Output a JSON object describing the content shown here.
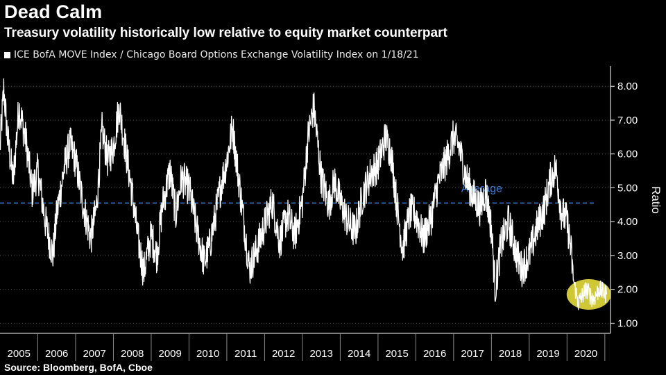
{
  "header": {
    "title": "Dead Calm",
    "subtitle": "Treasury volatility historically low relative to equity market counterpart",
    "legend_label": "ICE BofA MOVE Index / Chicago Board Options Exchange Volatility Index on 1/18/21"
  },
  "footer": {
    "source": "Source: Bloomberg, BofA, Cboe"
  },
  "chart_data": {
    "type": "line",
    "ylabel": "Ratio",
    "ylim": [
      0.7,
      8.6
    ],
    "yticks": [
      "8.00",
      "7.00",
      "6.00",
      "5.00",
      "4.00",
      "3.00",
      "2.00",
      "1.00"
    ],
    "x_categories": [
      "2005",
      "2006",
      "2007",
      "2008",
      "2009",
      "2010",
      "2011",
      "2012",
      "2013",
      "2014",
      "2015",
      "2016",
      "2017",
      "2018",
      "2019",
      "2020"
    ],
    "average": {
      "label": "Average",
      "value": 4.55
    },
    "highlight": {
      "label": "recent low region",
      "x_start": 2020.1,
      "x_end": 2021.05,
      "y_center": 1.85
    },
    "series": [
      {
        "name": "ICE BofA MOVE Index / Chicago Board Options Exchange Volatility Index",
        "points": [
          [
            2005.0,
            6.2
          ],
          [
            2005.1,
            7.9
          ],
          [
            2005.2,
            6.5
          ],
          [
            2005.35,
            5.2
          ],
          [
            2005.5,
            7.4
          ],
          [
            2005.7,
            6.3
          ],
          [
            2005.85,
            4.9
          ],
          [
            2006.0,
            5.5
          ],
          [
            2006.2,
            4.0
          ],
          [
            2006.4,
            3.0
          ],
          [
            2006.5,
            4.2
          ],
          [
            2006.7,
            5.6
          ],
          [
            2006.85,
            6.3
          ],
          [
            2007.0,
            5.8
          ],
          [
            2007.2,
            4.5
          ],
          [
            2007.4,
            3.5
          ],
          [
            2007.55,
            4.4
          ],
          [
            2007.7,
            6.7
          ],
          [
            2007.85,
            5.8
          ],
          [
            2008.0,
            6.2
          ],
          [
            2008.15,
            7.4
          ],
          [
            2008.3,
            6.3
          ],
          [
            2008.5,
            4.8
          ],
          [
            2008.65,
            3.5
          ],
          [
            2008.8,
            2.5
          ],
          [
            2009.0,
            3.6
          ],
          [
            2009.15,
            3.0
          ],
          [
            2009.3,
            4.5
          ],
          [
            2009.5,
            5.5
          ],
          [
            2009.65,
            4.2
          ],
          [
            2009.8,
            5.3
          ],
          [
            2010.0,
            5.0
          ],
          [
            2010.2,
            3.8
          ],
          [
            2010.4,
            2.8
          ],
          [
            2010.55,
            3.3
          ],
          [
            2010.7,
            4.2
          ],
          [
            2010.85,
            5.1
          ],
          [
            2011.0,
            5.8
          ],
          [
            2011.15,
            6.8
          ],
          [
            2011.3,
            5.4
          ],
          [
            2011.45,
            4.0
          ],
          [
            2011.6,
            2.6
          ],
          [
            2011.8,
            3.2
          ],
          [
            2012.0,
            3.9
          ],
          [
            2012.2,
            4.6
          ],
          [
            2012.4,
            3.4
          ],
          [
            2012.6,
            4.2
          ],
          [
            2012.8,
            3.6
          ],
          [
            2013.0,
            4.6
          ],
          [
            2013.15,
            6.5
          ],
          [
            2013.3,
            7.4
          ],
          [
            2013.5,
            5.3
          ],
          [
            2013.7,
            4.5
          ],
          [
            2013.85,
            5.2
          ],
          [
            2014.0,
            4.6
          ],
          [
            2014.2,
            4.0
          ],
          [
            2014.4,
            3.7
          ],
          [
            2014.6,
            4.8
          ],
          [
            2014.8,
            5.4
          ],
          [
            2015.0,
            5.7
          ],
          [
            2015.2,
            6.5
          ],
          [
            2015.35,
            6.0
          ],
          [
            2015.5,
            4.5
          ],
          [
            2015.65,
            3.2
          ],
          [
            2015.85,
            4.3
          ],
          [
            2016.0,
            4.2
          ],
          [
            2016.2,
            3.5
          ],
          [
            2016.4,
            4.1
          ],
          [
            2016.6,
            5.2
          ],
          [
            2016.8,
            5.8
          ],
          [
            2017.0,
            6.5
          ],
          [
            2017.15,
            6.2
          ],
          [
            2017.3,
            5.4
          ],
          [
            2017.5,
            4.8
          ],
          [
            2017.7,
            4.4
          ],
          [
            2017.85,
            4.9
          ],
          [
            2018.0,
            3.8
          ],
          [
            2018.1,
            2.0
          ],
          [
            2018.25,
            3.3
          ],
          [
            2018.45,
            4.0
          ],
          [
            2018.65,
            3.1
          ],
          [
            2018.8,
            2.6
          ],
          [
            2019.0,
            3.0
          ],
          [
            2019.2,
            3.8
          ],
          [
            2019.4,
            4.4
          ],
          [
            2019.55,
            5.2
          ],
          [
            2019.7,
            5.6
          ],
          [
            2019.85,
            4.3
          ],
          [
            2020.0,
            4.0
          ],
          [
            2020.1,
            3.2
          ],
          [
            2020.18,
            2.2
          ],
          [
            2020.3,
            1.6
          ],
          [
            2020.5,
            2.0
          ],
          [
            2020.7,
            1.7
          ],
          [
            2020.85,
            2.0
          ],
          [
            2021.05,
            1.85
          ]
        ]
      }
    ]
  },
  "colors": {
    "background": "#000000",
    "line": "#ffffff",
    "average": "#3b7fd9",
    "highlight": "#f3ea3f",
    "grid": "#5a5a5a"
  }
}
